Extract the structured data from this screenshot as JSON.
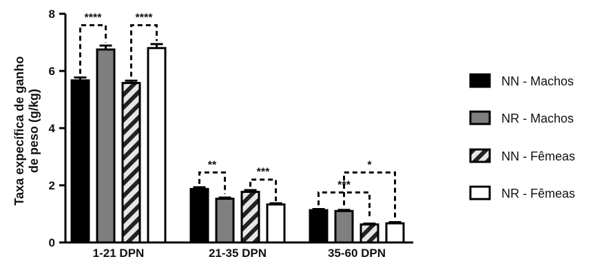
{
  "chart_data": {
    "type": "bar",
    "ylabel_line1": "Taxa expecífica de ganho",
    "ylabel_line2": "de peso (g/kg)",
    "ylim": [
      0,
      8
    ],
    "yticks": [
      "0",
      "2",
      "4",
      "6",
      "8"
    ],
    "categories": [
      "1-21 DPN",
      "21-35 DPN",
      "35-60 DPN"
    ],
    "grid": false,
    "legend_position": "right",
    "series": [
      {
        "name": "NN - Machos",
        "values": [
          5.67,
          1.87,
          1.13
        ],
        "errors": [
          0.1,
          0.06,
          0.04
        ],
        "fill": "#000000",
        "pattern": "solid"
      },
      {
        "name": "NR - Machos",
        "values": [
          6.75,
          1.53,
          1.1
        ],
        "errors": [
          0.14,
          0.04,
          0.04
        ],
        "fill": "#7f7f7f",
        "pattern": "solid"
      },
      {
        "name": "NN - Fêmeas",
        "values": [
          5.58,
          1.77,
          0.63
        ],
        "errors": [
          0.08,
          0.06,
          0.03
        ],
        "fill": "#e6e6e6",
        "pattern": "hatch"
      },
      {
        "name": "NR - Fêmeas",
        "values": [
          6.8,
          1.33,
          0.67
        ],
        "errors": [
          0.14,
          0.04,
          0.04
        ],
        "fill": "#ffffff",
        "pattern": "solid"
      }
    ],
    "significance": [
      {
        "category": 0,
        "from": 0,
        "to": 1,
        "label": "****",
        "level": 7.6,
        "drop_from": 5.9,
        "drop_to": 7.0
      },
      {
        "category": 0,
        "from": 2,
        "to": 3,
        "label": "****",
        "level": 7.6,
        "drop_from": 5.8,
        "drop_to": 7.05
      },
      {
        "category": 1,
        "from": 0,
        "to": 1,
        "label": "**",
        "level": 2.45,
        "drop_from": 2.05,
        "drop_to": 1.7
      },
      {
        "category": 1,
        "from": 2,
        "to": 3,
        "label": "***",
        "level": 2.2,
        "drop_from": 1.95,
        "drop_to": 1.45
      },
      {
        "category": 2,
        "from": 0,
        "to": 2,
        "label": "***",
        "level": 1.75,
        "drop_from": 1.3,
        "drop_to": 0.8
      },
      {
        "category": 2,
        "from": 1,
        "to": 3,
        "label": "*",
        "level": 2.45,
        "drop_from": 1.3,
        "drop_to": 0.8
      }
    ]
  }
}
